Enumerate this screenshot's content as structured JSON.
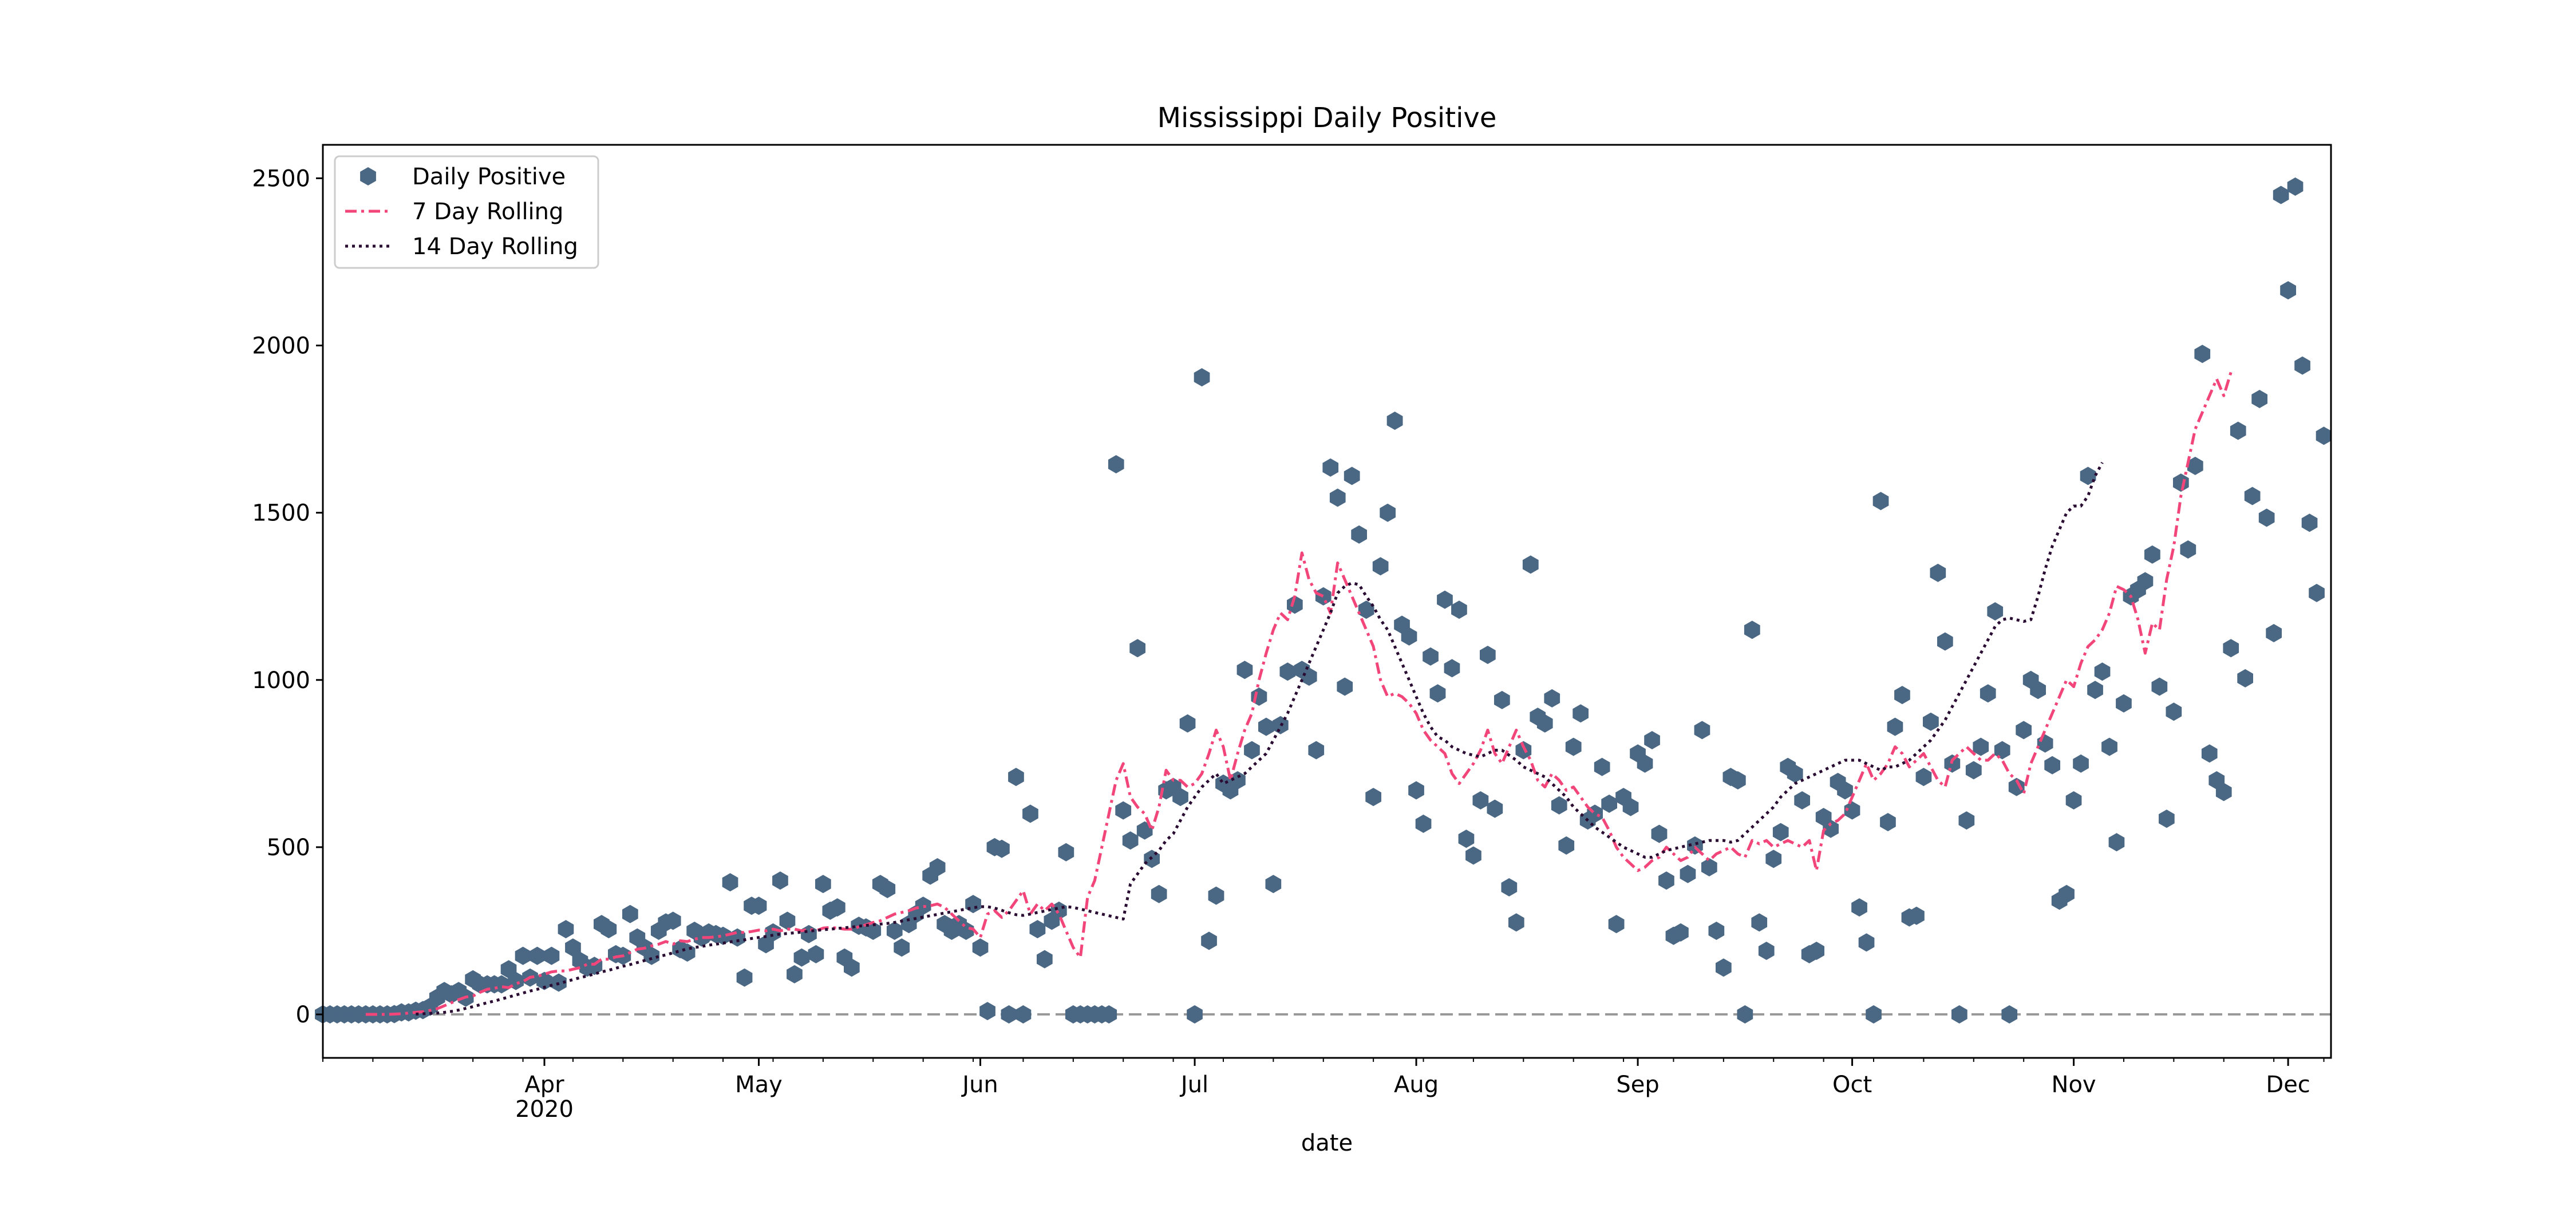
{
  "chart_data": {
    "type": "scatter",
    "title": "Mississippi Daily Positive",
    "xlabel": "date",
    "ylabel": "",
    "x_range": [
      "2020-03-01",
      "2020-12-07"
    ],
    "ylim": [
      -130,
      2600
    ],
    "yticks": [
      0,
      500,
      1000,
      1500,
      2000,
      2500
    ],
    "xticks": [
      {
        "date": "2020-04-01",
        "label": "Apr",
        "sublabel": "2020"
      },
      {
        "date": "2020-05-01",
        "label": "May",
        "sublabel": ""
      },
      {
        "date": "2020-06-01",
        "label": "Jun",
        "sublabel": ""
      },
      {
        "date": "2020-07-01",
        "label": "Jul",
        "sublabel": ""
      },
      {
        "date": "2020-08-01",
        "label": "Aug",
        "sublabel": ""
      },
      {
        "date": "2020-09-01",
        "label": "Sep",
        "sublabel": ""
      },
      {
        "date": "2020-10-01",
        "label": "Oct",
        "sublabel": ""
      },
      {
        "date": "2020-11-01",
        "label": "Nov",
        "sublabel": ""
      },
      {
        "date": "2020-12-01",
        "label": "Dec",
        "sublabel": ""
      }
    ],
    "zero_line": 0,
    "grid": false,
    "legend_position": "top-left",
    "colors": {
      "daily": "#4a6784",
      "rolling7": "#f2457a",
      "rolling14": "#2a0c33",
      "zero_line": "#999999"
    },
    "series": [
      {
        "name": "Daily Positive",
        "style": "scatter",
        "start_date": "2020-03-01",
        "values": [
          0,
          0,
          0,
          0,
          0,
          0,
          0,
          0,
          0,
          0,
          1,
          6,
          6,
          11,
          13,
          23,
          50,
          70,
          60,
          70,
          50,
          105,
          90,
          90,
          90,
          90,
          135,
          100,
          175,
          110,
          175,
          100,
          175,
          95,
          255,
          200,
          160,
          140,
          145,
          270,
          255,
          180,
          175,
          300,
          230,
          200,
          175,
          250,
          275,
          280,
          195,
          185,
          250,
          230,
          245,
          240,
          235,
          395,
          230,
          110,
          325,
          325,
          210,
          245,
          400,
          280,
          120,
          170,
          240,
          180,
          390,
          310,
          320,
          170,
          140,
          265,
          260,
          250,
          390,
          375,
          250,
          200,
          270,
          300,
          325,
          415,
          440,
          270,
          250,
          270,
          250,
          330,
          200,
          10,
          500,
          495,
          0,
          710,
          0,
          600,
          255,
          165,
          280,
          310,
          485,
          0,
          0,
          0,
          0,
          0,
          0,
          1645,
          610,
          520,
          1095,
          550,
          465,
          360,
          670,
          680,
          650,
          870,
          0,
          1905,
          220,
          355,
          690,
          670,
          700,
          1030,
          790,
          950,
          860,
          390,
          865,
          1025,
          1225,
          1030,
          1010,
          790,
          1250,
          1635,
          1545,
          980,
          1610,
          1435,
          1210,
          650,
          1340,
          1500,
          1775,
          1165,
          1130,
          670,
          570,
          1070,
          960,
          1240,
          1035,
          1210,
          525,
          475,
          640,
          1075,
          615,
          940,
          380,
          275,
          790,
          1345,
          890,
          870,
          945,
          625,
          505,
          800,
          900,
          580,
          600,
          740,
          630,
          270,
          650,
          620,
          780,
          750,
          820,
          540,
          400,
          235,
          245,
          420,
          505,
          850,
          440,
          250,
          140,
          710,
          700,
          0,
          1150,
          275,
          190,
          465,
          545,
          740,
          720,
          640,
          180,
          190,
          590,
          555,
          695,
          670,
          610,
          320,
          215,
          0,
          1535,
          575,
          860,
          955,
          290,
          295,
          710,
          875,
          1320,
          1115,
          750,
          0,
          580,
          730,
          800,
          960,
          1205,
          790,
          0,
          680,
          850,
          1000,
          970,
          810,
          745,
          340,
          360,
          640,
          750,
          1610,
          970,
          1025,
          800,
          515,
          930,
          1250,
          1270,
          1295,
          1375,
          980,
          585,
          905,
          1590,
          1390,
          1640,
          1975,
          780,
          700,
          665,
          1095,
          1745,
          1005,
          1550,
          1840,
          1485,
          1140,
          2450,
          2165,
          2475,
          1940,
          1470,
          1260,
          1730
        ]
      },
      {
        "name": "7 Day Rolling",
        "style": "dash-dot",
        "start_date": "2020-03-07",
        "values": [
          0,
          0,
          0,
          0,
          1,
          2,
          4,
          6,
          8,
          12,
          17,
          26,
          35,
          44,
          52,
          55,
          66,
          75,
          78,
          83,
          80,
          92,
          98,
          111,
          114,
          120,
          127,
          130,
          130,
          135,
          140,
          150,
          150,
          165,
          165,
          172,
          175,
          185,
          195,
          198,
          205,
          210,
          218,
          210,
          220,
          218,
          225,
          230,
          230,
          232,
          235,
          240,
          245,
          245,
          248,
          252,
          250,
          255,
          250,
          255,
          255,
          250,
          255,
          250,
          258,
          260,
          258,
          255,
          255,
          262,
          268,
          275,
          280,
          290,
          300,
          305,
          310,
          318,
          322,
          325,
          330,
          320,
          300,
          280,
          260,
          255,
          230,
          300,
          310,
          290,
          310,
          340,
          370,
          300,
          330,
          310,
          330,
          300,
          250,
          200,
          170,
          350,
          400,
          500,
          600,
          700,
          750,
          650,
          620,
          600,
          550,
          620,
          730,
          700,
          700,
          680,
          690,
          720,
          780,
          850,
          800,
          700,
          780,
          850,
          900,
          1000,
          1080,
          1150,
          1200,
          1180,
          1250,
          1380,
          1300,
          1260,
          1250,
          1200,
          1350,
          1300,
          1250,
          1200,
          1150,
          1100,
          1000,
          950,
          960,
          950,
          930,
          900,
          850,
          820,
          800,
          780,
          720,
          690,
          720,
          750,
          790,
          850,
          780,
          750,
          800,
          850,
          800,
          760,
          700,
          680,
          720,
          700,
          670,
          680,
          650,
          620,
          600,
          590,
          550,
          500,
          470,
          450,
          430,
          440,
          460,
          470,
          500,
          480,
          460,
          470,
          500,
          480,
          460,
          480,
          490,
          500,
          480,
          470,
          520,
          510,
          520,
          500,
          510,
          520,
          510,
          500,
          520,
          430,
          550,
          570,
          580,
          600,
          650,
          700,
          750,
          700,
          720,
          750,
          800,
          780,
          740,
          760,
          780,
          740,
          700,
          680,
          760,
          780,
          800,
          780,
          760,
          760,
          780,
          760,
          720,
          700,
          660,
          750,
          800,
          850,
          900,
          950,
          1000,
          980,
          1050,
          1100,
          1120,
          1150,
          1200,
          1280,
          1270,
          1250,
          1180,
          1080,
          1170,
          1150,
          1300,
          1400,
          1550,
          1650,
          1750,
          1800,
          1850,
          1900,
          1850,
          1920
        ]
      },
      {
        "name": "14 Day Rolling",
        "style": "dotted",
        "start_date": "2020-03-14",
        "values": [
          1,
          2,
          3,
          4,
          6,
          9,
          13,
          18,
          23,
          29,
          35,
          40,
          46,
          52,
          58,
          64,
          70,
          75,
          81,
          87,
          92,
          98,
          104,
          110,
          115,
          121,
          127,
          132,
          138,
          144,
          149,
          155,
          161,
          167,
          173,
          178,
          184,
          190,
          196,
          200,
          203,
          207,
          210,
          213,
          217,
          220,
          223,
          227,
          230,
          233,
          237,
          240,
          242,
          244,
          246,
          249,
          251,
          253,
          255,
          257,
          259,
          261,
          264,
          266,
          268,
          270,
          272,
          275,
          279,
          283,
          287,
          291,
          295,
          299,
          303,
          307,
          311,
          315,
          319,
          322,
          322,
          318,
          311,
          304,
          298,
          296,
          300,
          305,
          309,
          314,
          318,
          322,
          320,
          315,
          310,
          305,
          300,
          295,
          290,
          285,
          390,
          420,
          450,
          470,
          490,
          520,
          540,
          580,
          620,
          650,
          680,
          700,
          720,
          690,
          700,
          710,
          720,
          740,
          760,
          780,
          820,
          860,
          900,
          950,
          1000,
          1050,
          1100,
          1150,
          1200,
          1260,
          1280,
          1290,
          1285,
          1250,
          1220,
          1180,
          1150,
          1100,
          1050,
          1000,
          950,
          900,
          860,
          830,
          820,
          800,
          790,
          780,
          775,
          770,
          780,
          790,
          790,
          775,
          760,
          740,
          730,
          720,
          710,
          690,
          670,
          650,
          620,
          600,
          580,
          560,
          545,
          530,
          515,
          500,
          490,
          480,
          470,
          470,
          480,
          490,
          495,
          500,
          505,
          510,
          515,
          520,
          520,
          520,
          515,
          520,
          540,
          560,
          580,
          600,
          620,
          650,
          670,
          690,
          700,
          710,
          720,
          730,
          740,
          750,
          760,
          760,
          760,
          750,
          740,
          730,
          740,
          740,
          750,
          760,
          780,
          800,
          820,
          850,
          880,
          920,
          960,
          1000,
          1040,
          1080,
          1120,
          1160,
          1180,
          1185,
          1180,
          1175,
          1180,
          1250,
          1330,
          1400,
          1450,
          1500,
          1520,
          1520,
          1550,
          1610,
          1650
        ]
      }
    ]
  }
}
